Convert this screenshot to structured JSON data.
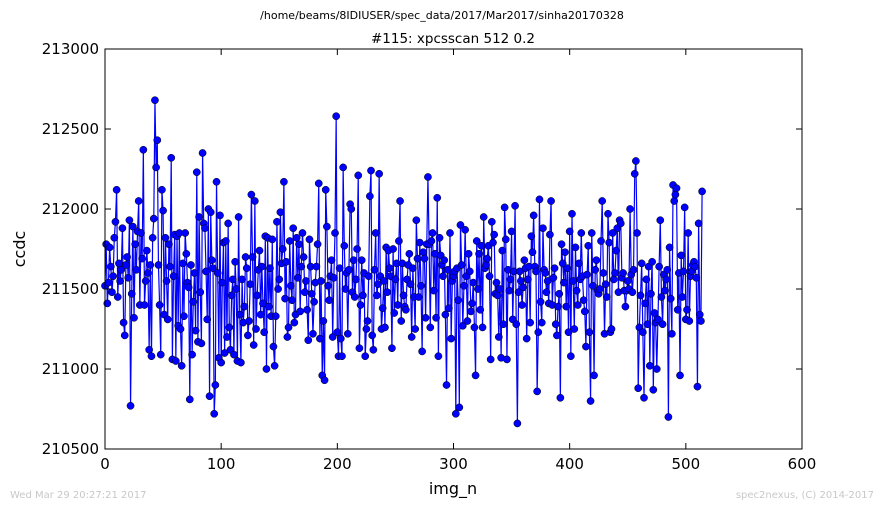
{
  "suptitle": "/home/beams/8IDIUSER/spec_data/2017/Mar2017/sinha20170328",
  "footer": {
    "timestamp": "Wed Mar 29 20:27:21 2017",
    "credit": "spec2nexus, (C) 2014-2017"
  },
  "chart_data": {
    "type": "line",
    "title": "#115: xpcsscan 512 0.2",
    "xlabel": "img_n",
    "ylabel": "ccdc",
    "xlim": [
      0,
      600
    ],
    "ylim": [
      210500,
      213000
    ],
    "xticks": [
      "0",
      "100",
      "200",
      "300",
      "400",
      "500",
      "600"
    ],
    "yticks": [
      "210500",
      "211000",
      "211500",
      "212000",
      "212500",
      "213000"
    ],
    "grid": false,
    "legend": "none",
    "series_color": "#0000ff",
    "marker": "circle",
    "series": [
      {
        "x_start": 0,
        "x_step": 1,
        "values": [
          211520,
          211780,
          211410,
          211540,
          211760,
          211640,
          211480,
          211580,
          211820,
          211920,
          212120,
          211450,
          211660,
          211550,
          211620,
          211880,
          211290,
          211210,
          211650,
          211700,
          211570,
          211930,
          210770,
          211470,
          211890,
          211320,
          211780,
          211620,
          211860,
          212050,
          211400,
          211850,
          211690,
          212370,
          211400,
          211550,
          211740,
          211600,
          211120,
          211650,
          211080,
          211820,
          211940,
          212680,
          212260,
          212430,
          211650,
          211400,
          211090,
          212120,
          211990,
          211340,
          211820,
          211550,
          211310,
          211780,
          211640,
          212320,
          211060,
          211580,
          211840,
          211050,
          211830,
          211270,
          211850,
          211250,
          211020,
          211660,
          211330,
          211850,
          211720,
          211540,
          211510,
          210810,
          211650,
          211090,
          211420,
          211600,
          211240,
          212230,
          211170,
          211950,
          211480,
          211160,
          212350,
          211910,
          211880,
          211610,
          211310,
          212000,
          210830,
          211980,
          211680,
          211630,
          210720,
          210900,
          212170,
          211600,
          211070,
          211960,
          211040,
          211540,
          211790,
          211100,
          211800,
          211200,
          211910,
          211260,
          211120,
          211460,
          211560,
          211090,
          211670,
          211500,
          211050,
          211950,
          211340,
          211040,
          211560,
          211290,
          211390,
          211700,
          211630,
          211210,
          211300,
          211530,
          212090,
          211700,
          211150,
          212050,
          211250,
          211460,
          211620,
          211740,
          211340,
          211640,
          211410,
          211230,
          211830,
          211000,
          211820,
          211390,
          211630,
          211330,
          211810,
          211140,
          211020,
          211330,
          211920,
          211500,
          211560,
          211980,
          211660,
          211750,
          212170,
          211440,
          211670,
          211200,
          211260,
          211800,
          211520,
          211430,
          211880,
          211290,
          211340,
          211820,
          211570,
          211780,
          211360,
          211640,
          211850,
          211700,
          211480,
          211550,
          211370,
          211180,
          211810,
          211640,
          211470,
          211220,
          211420,
          211540,
          211640,
          211780,
          212160,
          211190,
          211550,
          210960,
          211300,
          210930,
          212120,
          211890,
          211520,
          211430,
          211580,
          211680,
          211200,
          211570,
          211850,
          212580,
          211230,
          211080,
          211630,
          211190,
          211080,
          212260,
          211770,
          211500,
          211600,
          211220,
          211620,
          212030,
          212000,
          211480,
          211680,
          211450,
          211560,
          211750,
          212210,
          211130,
          211400,
          211680,
          211460,
          211600,
          211080,
          211250,
          211300,
          211580,
          212080,
          212240,
          211210,
          211120,
          211620,
          211850,
          211460,
          211530,
          212220,
          211580,
          211250,
          211380,
          211550,
          211260,
          211760,
          211480,
          211740,
          211630,
          211580,
          211130,
          211750,
          211350,
          211560,
          211660,
          211400,
          211800,
          212050,
          211300,
          211660,
          211460,
          211390,
          211370,
          211560,
          211650,
          211720,
          211530,
          211200,
          211630,
          211450,
          211250,
          211930,
          211690,
          211450,
          211790,
          211520,
          211110,
          211730,
          211690,
          211320,
          211780,
          212200,
          211780,
          211260,
          211800,
          211850,
          211490,
          211720,
          211320,
          212070,
          211080,
          211820,
          211710,
          211650,
          211580,
          211680,
          211340,
          210900,
          211620,
          211380,
          211850,
          211190,
          211550,
          211580,
          211610,
          210720,
          211630,
          211430,
          210760,
          211900,
          211650,
          211270,
          211520,
          211870,
          211580,
          211300,
          211720,
          211610,
          211360,
          211410,
          211540,
          211260,
          210960,
          211800,
          211500,
          211720,
          211370,
          211770,
          211260,
          211950,
          211630,
          211650,
          211690,
          211770,
          211580,
          211060,
          211920,
          211790,
          211840,
          211470,
          211540,
          211460,
          211200,
          211500,
          211070,
          211740,
          211280,
          212010,
          211810,
          211060,
          211620,
          211490,
          211560,
          211860,
          211310,
          211610,
          212020,
          211280,
          210660,
          211480,
          211610,
          211550,
          211400,
          211510,
          211680,
          211630,
          211190,
          211560,
          211640,
          211290,
          211830,
          211730,
          211960,
          211640,
          211610,
          210860,
          211230,
          212060,
          211420,
          211290,
          211880,
          211620,
          211600,
          211480,
          211550,
          211410,
          211840,
          212050,
          211400,
          211570,
          211630,
          211280,
          211210,
          211390,
          211470,
          210820,
          211780,
          211660,
          211540,
          211730,
          211390,
          211630,
          211230,
          211860,
          211080,
          211970,
          211550,
          211250,
          211760,
          211490,
          211400,
          211660,
          211560,
          211850,
          211580,
          211430,
          211360,
          211140,
          211590,
          211770,
          211230,
          210800,
          211850,
          211520,
          210960,
          211620,
          211680,
          211490,
          211470,
          211500,
          211800,
          212050,
          211600,
          211220,
          211530,
          211450,
          211970,
          211790,
          211230,
          211250,
          211850,
          211560,
          211600,
          211740,
          211880,
          211480,
          211930,
          211910,
          211570,
          211600,
          211490,
          211390,
          211490,
          211550,
          211500,
          212000,
          211590,
          211480,
          211620,
          212220,
          212300,
          211850,
          210880,
          211260,
          211460,
          211660,
          211230,
          210820,
          211410,
          211560,
          211280,
          211640,
          211020,
          211470,
          211670,
          210870,
          211350,
          211290,
          211000,
          211310,
          211640,
          211930,
          211450,
          211280,
          211590,
          211490,
          211560,
          211620,
          210700,
          211760,
          211440,
          211220,
          212150,
          212050,
          212090,
          212130,
          211370,
          211600,
          210960,
          211710,
          211450,
          211610,
          212010,
          211310,
          211370,
          211850,
          211300,
          211580,
          211610,
          211650,
          211670,
          211640,
          211570,
          210890,
          211910,
          211340,
          211300,
          212110
        ]
      }
    ]
  }
}
